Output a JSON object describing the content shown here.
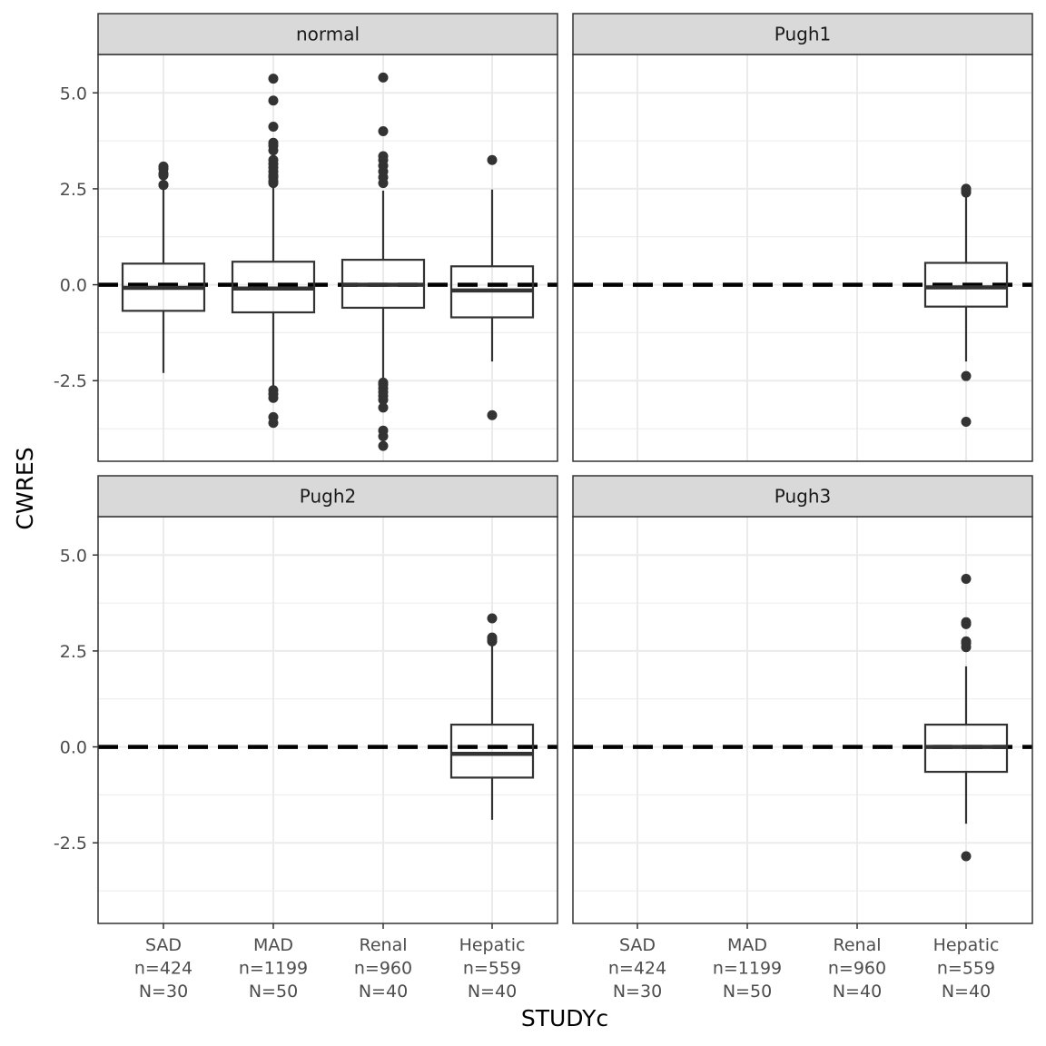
{
  "chart_data": {
    "type": "boxplot",
    "facets": [
      "normal",
      "Pugh1",
      "Pugh2",
      "Pugh3"
    ],
    "categories": [
      "SAD",
      "MAD",
      "Renal",
      "Hepatic"
    ],
    "category_labels": [
      [
        "SAD",
        "n=424",
        "N=30"
      ],
      [
        "MAD",
        "n=1199",
        "N=50"
      ],
      [
        "Renal",
        "n=960",
        "N=40"
      ],
      [
        "Hepatic",
        "n=559",
        "N=40"
      ]
    ],
    "xlabel": "STUDYc",
    "ylabel": "CWRES",
    "ylim": [
      -4.6,
      6.0
    ],
    "yticks": [
      5.0,
      2.5,
      0.0,
      -2.5
    ],
    "ytick_labels": [
      "5.0",
      "2.5",
      "0.0",
      "-2.5"
    ],
    "reference_line": 0.0,
    "panels": [
      {
        "facet": "normal",
        "boxes": [
          {
            "category": "SAD",
            "lower_whisker": -2.3,
            "q1": -0.68,
            "median": -0.08,
            "q3": 0.55,
            "upper_whisker": 2.5,
            "outliers": [
              2.6,
              2.6,
              2.85,
              2.9,
              3.02,
              3.08
            ]
          },
          {
            "category": "MAD",
            "lower_whisker": -2.7,
            "q1": -0.72,
            "median": -0.1,
            "q3": 0.6,
            "upper_whisker": 2.55,
            "outliers": [
              2.65,
              2.7,
              2.8,
              2.85,
              2.95,
              3.05,
              3.15,
              3.25,
              3.5,
              3.62,
              3.7,
              4.12,
              4.8,
              5.37,
              -2.75,
              -2.85,
              -2.95,
              -3.45,
              -3.6
            ]
          },
          {
            "category": "Renal",
            "lower_whisker": -2.45,
            "q1": -0.6,
            "median": 0.0,
            "q3": 0.65,
            "upper_whisker": 2.45,
            "outliers": [
              2.65,
              2.8,
              2.95,
              3.1,
              3.25,
              3.35,
              4.0,
              5.4,
              -2.55,
              -2.6,
              -2.7,
              -2.8,
              -2.9,
              -3.0,
              -3.2,
              -3.8,
              -3.95,
              -4.2
            ]
          },
          {
            "category": "Hepatic",
            "lower_whisker": -2.0,
            "q1": -0.85,
            "median": -0.15,
            "q3": 0.48,
            "upper_whisker": 2.48,
            "outliers": [
              3.25,
              -3.4
            ]
          }
        ]
      },
      {
        "facet": "Pugh1",
        "boxes": [
          {
            "category": "Hepatic",
            "lower_whisker": -2.0,
            "q1": -0.57,
            "median": -0.07,
            "q3": 0.57,
            "upper_whisker": 2.35,
            "outliers": [
              2.4,
              2.45,
              2.5,
              -2.38,
              -3.57
            ]
          }
        ]
      },
      {
        "facet": "Pugh2",
        "boxes": [
          {
            "category": "Hepatic",
            "lower_whisker": -1.9,
            "q1": -0.8,
            "median": -0.18,
            "q3": 0.58,
            "upper_whisker": 2.7,
            "outliers": [
              2.75,
              2.8,
              2.85,
              3.35
            ]
          }
        ]
      },
      {
        "facet": "Pugh3",
        "boxes": [
          {
            "category": "Hepatic",
            "lower_whisker": -2.0,
            "q1": -0.65,
            "median": 0.0,
            "q3": 0.58,
            "upper_whisker": 2.1,
            "outliers": [
              2.6,
              2.7,
              2.75,
              3.2,
              3.25,
              4.38,
              -2.85
            ]
          }
        ]
      }
    ]
  }
}
